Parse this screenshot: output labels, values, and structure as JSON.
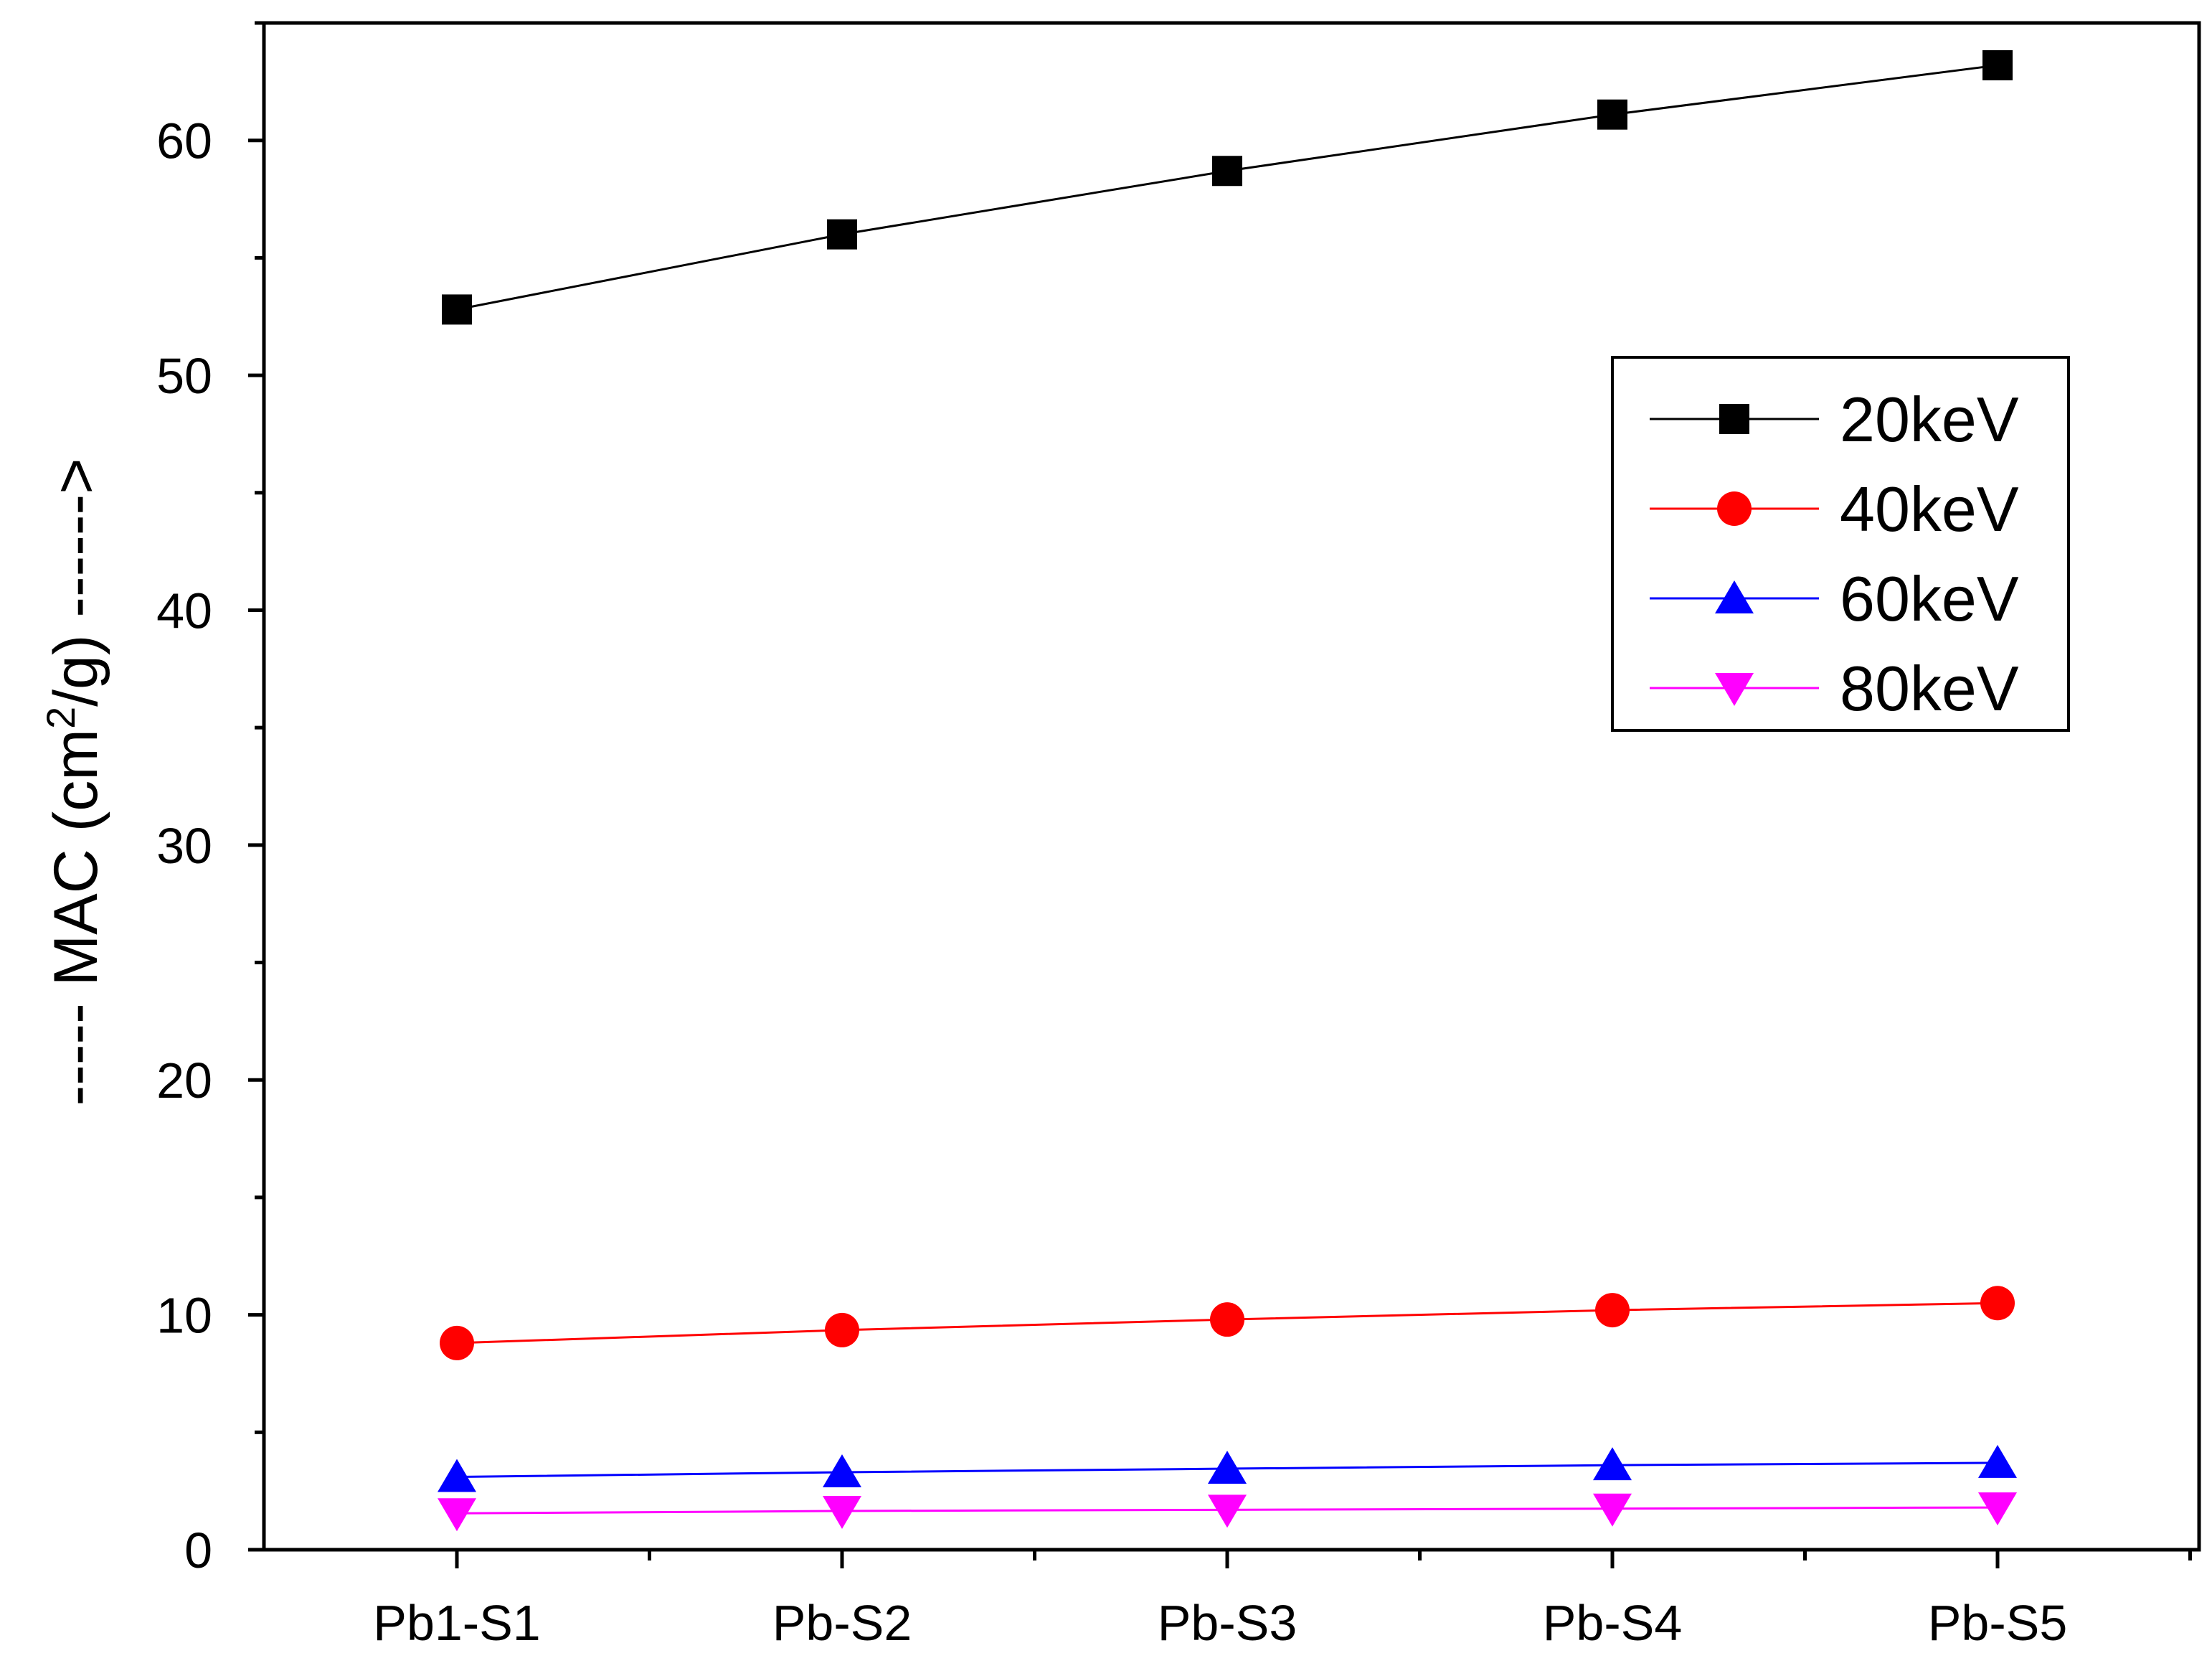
{
  "chart_data": {
    "type": "line",
    "title": "",
    "xlabel": "",
    "ylabel_parts": [
      "----- MAC (cm",
      "2",
      "/g) ------>"
    ],
    "categories": [
      "Pb1-S1",
      "Pb-S2",
      "Pb-S3",
      "Pb-S4",
      "Pb-S5"
    ],
    "ylim": [
      0,
      65
    ],
    "yticks": [
      0,
      10,
      20,
      30,
      40,
      50,
      60
    ],
    "yticks_labels": [
      "0",
      "10",
      "20",
      "30",
      "40",
      "50",
      "60"
    ],
    "legend_position": "top-right",
    "series": [
      {
        "name": "20keV",
        "color": "#000000",
        "marker": "square",
        "values": [
          52.8,
          56.0,
          58.7,
          61.1,
          63.2
        ]
      },
      {
        "name": "40keV",
        "color": "#ff0000",
        "marker": "circle",
        "values": [
          8.8,
          9.35,
          9.8,
          10.2,
          10.5
        ]
      },
      {
        "name": "60keV",
        "color": "#0000ff",
        "marker": "triangle-up",
        "values": [
          3.1,
          3.3,
          3.45,
          3.6,
          3.7
        ]
      },
      {
        "name": "80keV",
        "color": "#ff00ff",
        "marker": "triangle-down",
        "values": [
          1.55,
          1.65,
          1.7,
          1.75,
          1.8
        ]
      }
    ]
  }
}
